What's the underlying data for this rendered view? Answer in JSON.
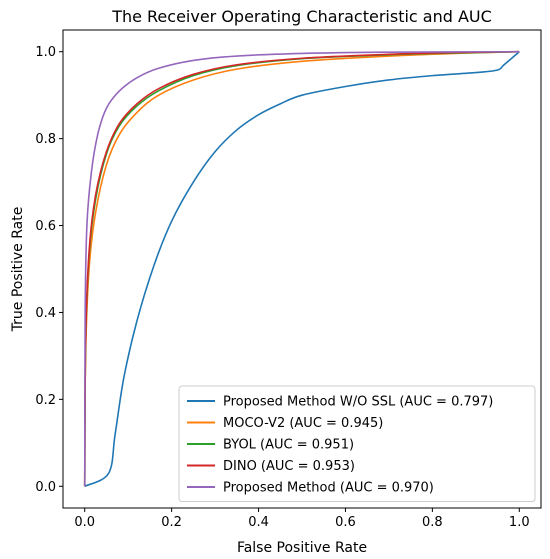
{
  "chart_data": {
    "type": "line",
    "title": "The Receiver Operating Characteristic and AUC",
    "xlabel": "False Positive Rate",
    "ylabel": "True Positive Rate",
    "xlim": [
      -0.05,
      1.05
    ],
    "ylim": [
      -0.05,
      1.05
    ],
    "xticks": [
      "0.0",
      "0.2",
      "0.4",
      "0.6",
      "0.8",
      "1.0"
    ],
    "yticks": [
      "0.0",
      "0.2",
      "0.4",
      "0.6",
      "0.8",
      "1.0"
    ],
    "grid": false,
    "legend_position": "lower-right",
    "series": [
      {
        "name": "Proposed Method W/O SSL (AUC = 0.797)",
        "color": "#1f77b4",
        "points": [
          [
            0,
            0
          ],
          [
            0.055,
            0.03
          ],
          [
            0.07,
            0.12
          ],
          [
            0.09,
            0.25
          ],
          [
            0.12,
            0.38
          ],
          [
            0.16,
            0.51
          ],
          [
            0.2,
            0.61
          ],
          [
            0.25,
            0.7
          ],
          [
            0.3,
            0.77
          ],
          [
            0.35,
            0.82
          ],
          [
            0.4,
            0.855
          ],
          [
            0.45,
            0.88
          ],
          [
            0.5,
            0.9
          ],
          [
            0.6,
            0.92
          ],
          [
            0.7,
            0.935
          ],
          [
            0.8,
            0.945
          ],
          [
            0.9,
            0.952
          ],
          [
            0.95,
            0.958
          ],
          [
            0.965,
            0.97
          ],
          [
            1.0,
            1.0
          ]
        ]
      },
      {
        "name": "MOCO-V2 (AUC = 0.945)",
        "color": "#ff7f0e",
        "points": [
          [
            0,
            0
          ],
          [
            0.002,
            0.3
          ],
          [
            0.01,
            0.5
          ],
          [
            0.025,
            0.63
          ],
          [
            0.05,
            0.74
          ],
          [
            0.08,
            0.81
          ],
          [
            0.12,
            0.86
          ],
          [
            0.17,
            0.9
          ],
          [
            0.25,
            0.935
          ],
          [
            0.35,
            0.96
          ],
          [
            0.5,
            0.978
          ],
          [
            0.7,
            0.99
          ],
          [
            0.85,
            0.996
          ],
          [
            1.0,
            1.0
          ]
        ]
      },
      {
        "name": "BYOL (AUC = 0.951)",
        "color": "#2ca02c",
        "points": [
          [
            0,
            0
          ],
          [
            0.002,
            0.32
          ],
          [
            0.01,
            0.53
          ],
          [
            0.025,
            0.66
          ],
          [
            0.05,
            0.765
          ],
          [
            0.08,
            0.83
          ],
          [
            0.12,
            0.875
          ],
          [
            0.17,
            0.91
          ],
          [
            0.25,
            0.945
          ],
          [
            0.35,
            0.968
          ],
          [
            0.5,
            0.984
          ],
          [
            0.7,
            0.993
          ],
          [
            0.85,
            0.997
          ],
          [
            1.0,
            1.0
          ]
        ]
      },
      {
        "name": "DINO (AUC = 0.953)",
        "color": "#d62728",
        "points": [
          [
            0,
            0
          ],
          [
            0.002,
            0.33
          ],
          [
            0.01,
            0.54
          ],
          [
            0.025,
            0.67
          ],
          [
            0.05,
            0.77
          ],
          [
            0.08,
            0.835
          ],
          [
            0.12,
            0.88
          ],
          [
            0.17,
            0.915
          ],
          [
            0.25,
            0.948
          ],
          [
            0.35,
            0.97
          ],
          [
            0.5,
            0.985
          ],
          [
            0.7,
            0.994
          ],
          [
            0.85,
            0.998
          ],
          [
            1.0,
            1.0
          ]
        ]
      },
      {
        "name": "Proposed Method (AUC = 0.970)",
        "color": "#9467bd",
        "points": [
          [
            0,
            0
          ],
          [
            0.001,
            0.4
          ],
          [
            0.005,
            0.6
          ],
          [
            0.015,
            0.72
          ],
          [
            0.03,
            0.81
          ],
          [
            0.05,
            0.87
          ],
          [
            0.08,
            0.91
          ],
          [
            0.12,
            0.94
          ],
          [
            0.17,
            0.962
          ],
          [
            0.25,
            0.98
          ],
          [
            0.35,
            0.99
          ],
          [
            0.5,
            0.996
          ],
          [
            0.7,
            0.999
          ],
          [
            1.0,
            1.0
          ]
        ]
      }
    ]
  }
}
